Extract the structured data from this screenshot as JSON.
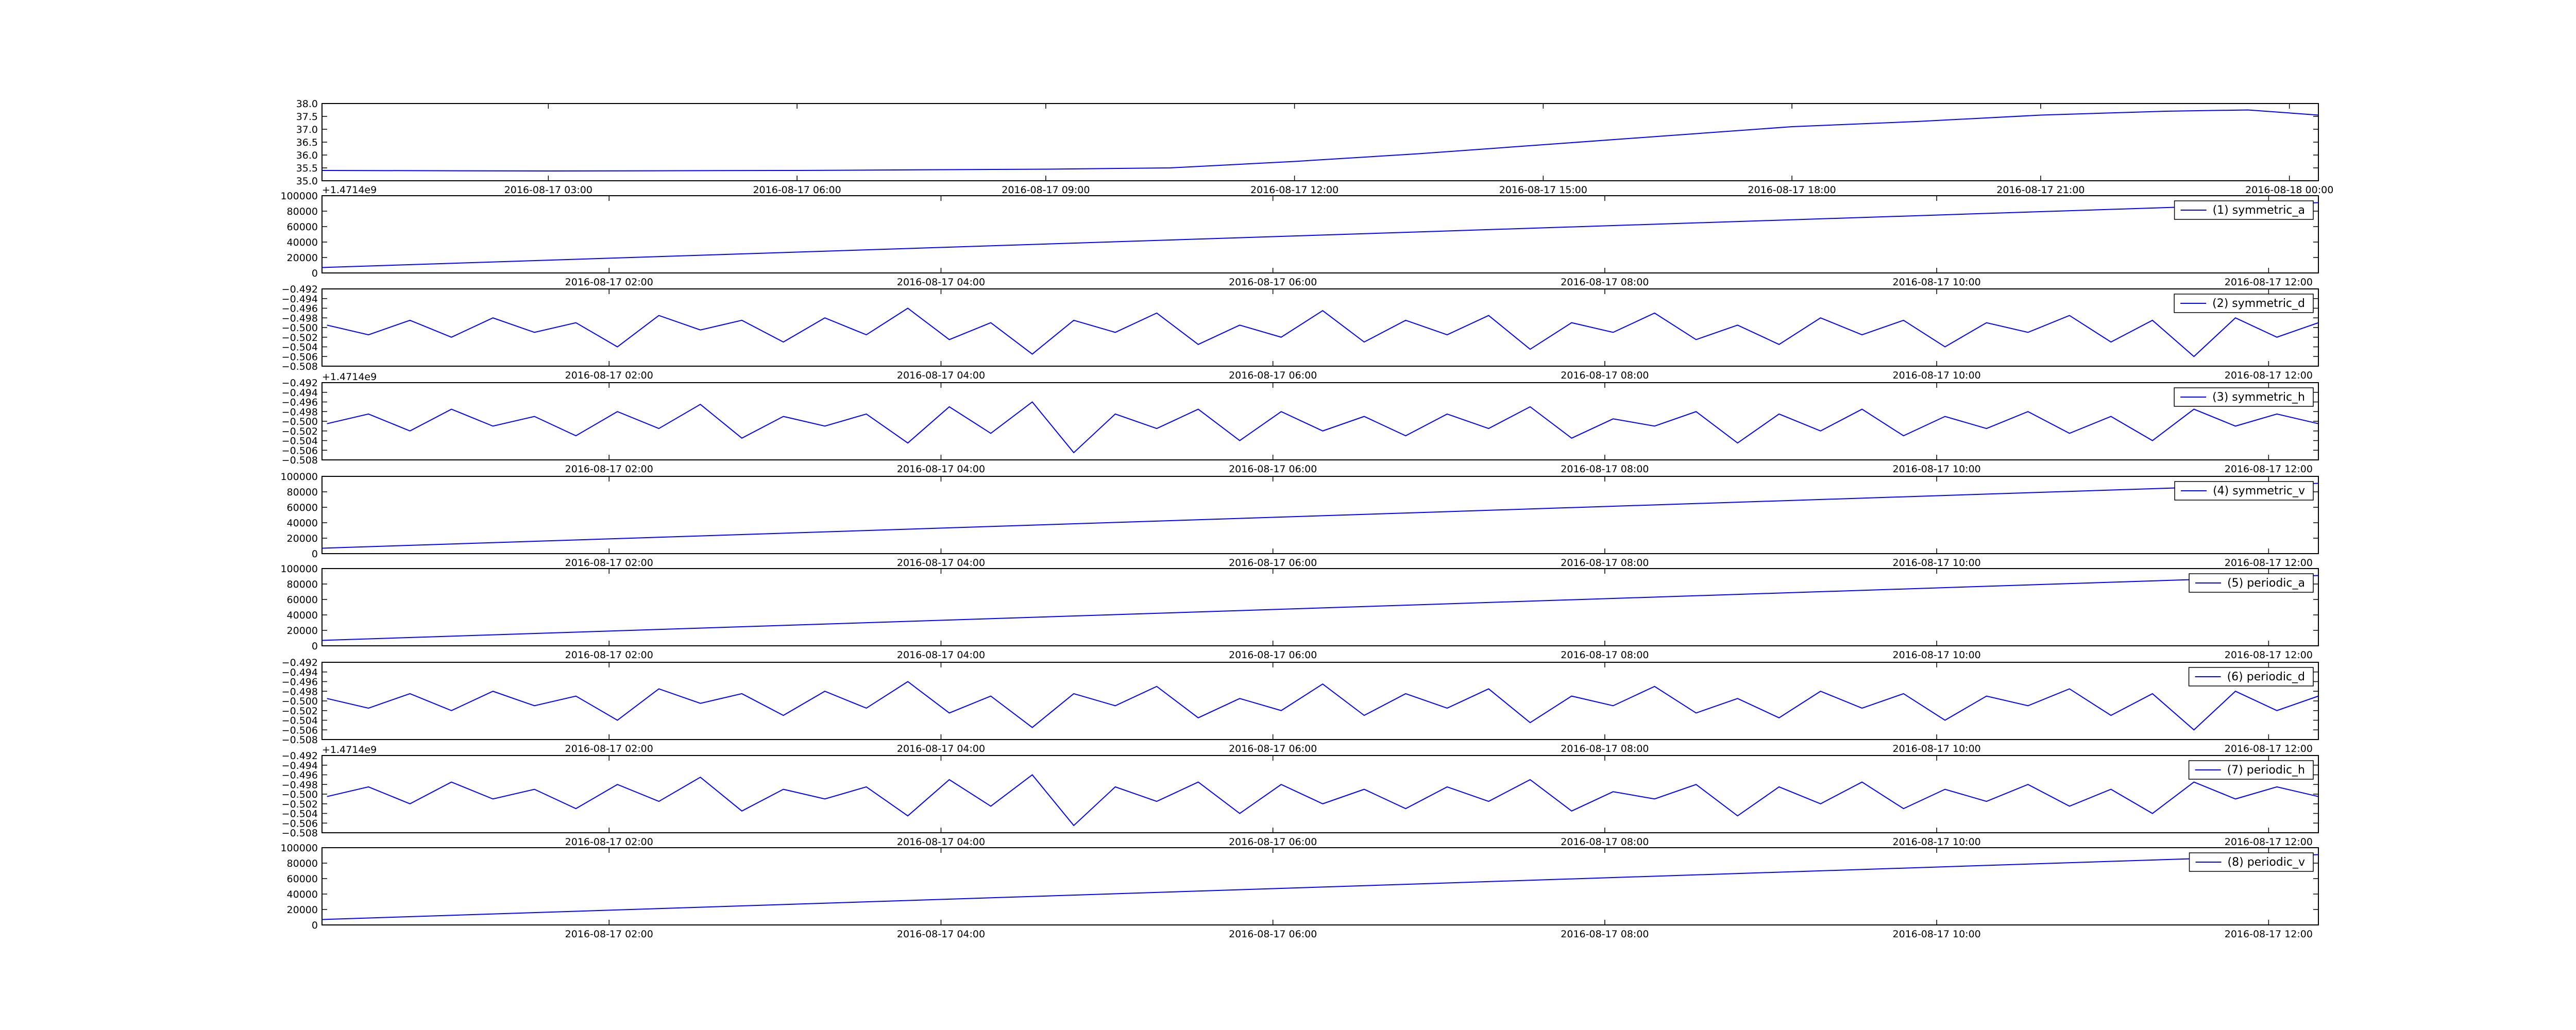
{
  "chart_data": [
    {
      "type": "line",
      "x": [
        0.27,
        3,
        6,
        9,
        10.5,
        12,
        13.5,
        15,
        16.5,
        18,
        19.5,
        21,
        22.5,
        23.5,
        24.35
      ],
      "series": [
        {
          "color": "#0000ff",
          "values": [
            35.4,
            35.38,
            35.4,
            35.45,
            35.5,
            35.75,
            36.05,
            36.4,
            36.75,
            37.1,
            37.3,
            37.55,
            37.7,
            37.75,
            37.55
          ]
        }
      ],
      "xlim": [
        0.27,
        24.35
      ],
      "ylim": [
        35,
        38
      ],
      "xticks": [
        {
          "value": 3,
          "label": "2016-08-17 03:00"
        },
        {
          "value": 6,
          "label": "2016-08-17 06:00"
        },
        {
          "value": 9,
          "label": "2016-08-17 09:00"
        },
        {
          "value": 12,
          "label": "2016-08-17 12:00"
        },
        {
          "value": 15,
          "label": "2016-08-17 15:00"
        },
        {
          "value": 18,
          "label": "2016-08-17 18:00"
        },
        {
          "value": 21,
          "label": "2016-08-17 21:00"
        },
        {
          "value": 24,
          "label": "2016-08-18 00:00"
        }
      ],
      "yticks": [
        {
          "value": 35,
          "label": "35.0"
        },
        {
          "value": 35.5,
          "label": "35.5"
        },
        {
          "value": 36,
          "label": "36.0"
        },
        {
          "value": 36.5,
          "label": "36.5"
        },
        {
          "value": 37,
          "label": "37.0"
        },
        {
          "value": 37.5,
          "label": "37.5"
        },
        {
          "value": 38,
          "label": "38.0"
        }
      ]
    },
    {
      "type": "line",
      "x": [
        0.27,
        12.3
      ],
      "series": [
        {
          "name": "(1) symmetric_a",
          "color": "#0000ff",
          "values": [
            7000,
            91000
          ]
        }
      ],
      "xlim": [
        0.27,
        12.3
      ],
      "ylim": [
        0,
        100000
      ],
      "offset_text": "+1.4714e9",
      "legend": "upper right",
      "xticks": [
        {
          "value": 2,
          "label": "2016-08-17 02:00"
        },
        {
          "value": 4,
          "label": "2016-08-17 04:00"
        },
        {
          "value": 6,
          "label": "2016-08-17 06:00"
        },
        {
          "value": 8,
          "label": "2016-08-17 08:00"
        },
        {
          "value": 10,
          "label": "2016-08-17 10:00"
        },
        {
          "value": 12,
          "label": "2016-08-17 12:00"
        }
      ],
      "yticks": [
        0,
        20000,
        40000,
        60000,
        80000,
        100000
      ]
    },
    {
      "type": "line",
      "x": [
        0.3,
        0.55,
        0.8,
        1.05,
        1.3,
        1.55,
        1.8,
        2.05,
        2.3,
        2.55,
        2.8,
        3.05,
        3.3,
        3.55,
        3.8,
        4.05,
        4.3,
        4.55,
        4.8,
        5.05,
        5.3,
        5.55,
        5.8,
        6.05,
        6.3,
        6.55,
        6.8,
        7.05,
        7.3,
        7.55,
        7.8,
        8.05,
        8.3,
        8.55,
        8.8,
        9.05,
        9.3,
        9.55,
        9.8,
        10.05,
        10.3,
        10.55,
        10.8,
        11.05,
        11.3,
        11.55,
        11.8,
        12.05,
        12.3
      ],
      "series": [
        {
          "name": "(2) symmetric_d",
          "color": "#0000ff",
          "values": [
            -0.4995,
            -0.5015,
            -0.4985,
            -0.502,
            -0.498,
            -0.501,
            -0.499,
            -0.504,
            -0.4975,
            -0.5005,
            -0.4985,
            -0.503,
            -0.498,
            -0.5015,
            -0.496,
            -0.5025,
            -0.499,
            -0.5055,
            -0.4985,
            -0.501,
            -0.497,
            -0.5035,
            -0.4995,
            -0.502,
            -0.4965,
            -0.503,
            -0.4985,
            -0.5015,
            -0.4975,
            -0.5045,
            -0.499,
            -0.501,
            -0.497,
            -0.5025,
            -0.4995,
            -0.5035,
            -0.498,
            -0.5015,
            -0.4985,
            -0.504,
            -0.499,
            -0.501,
            -0.4975,
            -0.503,
            -0.4985,
            -0.506,
            -0.498,
            -0.502,
            -0.499
          ]
        }
      ],
      "xlim": [
        0.27,
        12.3
      ],
      "ylim": [
        -0.508,
        -0.492
      ],
      "legend": "upper right",
      "xticks": [
        {
          "value": 2,
          "label": "2016-08-17 02:00"
        },
        {
          "value": 4,
          "label": "2016-08-17 04:00"
        },
        {
          "value": 6,
          "label": "2016-08-17 06:00"
        },
        {
          "value": 8,
          "label": "2016-08-17 08:00"
        },
        {
          "value": 10,
          "label": "2016-08-17 10:00"
        },
        {
          "value": 12,
          "label": "2016-08-17 12:00"
        }
      ],
      "yticks": [
        {
          "value": -0.508,
          "label": "−0.508"
        },
        {
          "value": -0.506,
          "label": "−0.506"
        },
        {
          "value": -0.504,
          "label": "−0.504"
        },
        {
          "value": -0.502,
          "label": "−0.502"
        },
        {
          "value": -0.5,
          "label": "−0.500"
        },
        {
          "value": -0.498,
          "label": "−0.498"
        },
        {
          "value": -0.496,
          "label": "−0.496"
        },
        {
          "value": -0.494,
          "label": "−0.494"
        },
        {
          "value": -0.492,
          "label": "−0.492"
        }
      ]
    },
    {
      "type": "line",
      "x": [
        0.3,
        0.55,
        0.8,
        1.05,
        1.3,
        1.55,
        1.8,
        2.05,
        2.3,
        2.55,
        2.8,
        3.05,
        3.3,
        3.55,
        3.8,
        4.05,
        4.3,
        4.55,
        4.8,
        5.05,
        5.3,
        5.55,
        5.8,
        6.05,
        6.3,
        6.55,
        6.8,
        7.05,
        7.3,
        7.55,
        7.8,
        8.05,
        8.3,
        8.55,
        8.8,
        9.05,
        9.3,
        9.55,
        9.8,
        10.05,
        10.3,
        10.55,
        10.8,
        11.05,
        11.3,
        11.55,
        11.8,
        12.05,
        12.3
      ],
      "series": [
        {
          "name": "(3) symmetric_h",
          "color": "#0000ff",
          "values": [
            -0.5005,
            -0.4985,
            -0.502,
            -0.4975,
            -0.501,
            -0.499,
            -0.503,
            -0.498,
            -0.5015,
            -0.4965,
            -0.5035,
            -0.499,
            -0.501,
            -0.4985,
            -0.5045,
            -0.497,
            -0.5025,
            -0.496,
            -0.5065,
            -0.4985,
            -0.5015,
            -0.4975,
            -0.504,
            -0.498,
            -0.502,
            -0.499,
            -0.503,
            -0.4985,
            -0.5015,
            -0.497,
            -0.5035,
            -0.4995,
            -0.501,
            -0.498,
            -0.5045,
            -0.4985,
            -0.502,
            -0.4975,
            -0.503,
            -0.499,
            -0.5015,
            -0.498,
            -0.5025,
            -0.499,
            -0.504,
            -0.4975,
            -0.501,
            -0.4985,
            -0.5005
          ]
        }
      ],
      "xlim": [
        0.27,
        12.3
      ],
      "ylim": [
        -0.508,
        -0.492
      ],
      "offset_text": "+1.4714e9",
      "legend": "upper right",
      "xticks": [
        {
          "value": 2,
          "label": "2016-08-17 02:00"
        },
        {
          "value": 4,
          "label": "2016-08-17 04:00"
        },
        {
          "value": 6,
          "label": "2016-08-17 06:00"
        },
        {
          "value": 8,
          "label": "2016-08-17 08:00"
        },
        {
          "value": 10,
          "label": "2016-08-17 10:00"
        },
        {
          "value": 12,
          "label": "2016-08-17 12:00"
        }
      ],
      "yticks": [
        {
          "value": -0.508,
          "label": "−0.508"
        },
        {
          "value": -0.506,
          "label": "−0.506"
        },
        {
          "value": -0.504,
          "label": "−0.504"
        },
        {
          "value": -0.502,
          "label": "−0.502"
        },
        {
          "value": -0.5,
          "label": "−0.500"
        },
        {
          "value": -0.498,
          "label": "−0.498"
        },
        {
          "value": -0.496,
          "label": "−0.496"
        },
        {
          "value": -0.494,
          "label": "−0.494"
        },
        {
          "value": -0.492,
          "label": "−0.492"
        }
      ]
    },
    {
      "type": "line",
      "x": [
        0.27,
        12.3
      ],
      "series": [
        {
          "name": "(4) symmetric_v",
          "color": "#0000ff",
          "values": [
            7000,
            91000
          ]
        }
      ],
      "xlim": [
        0.27,
        12.3
      ],
      "ylim": [
        0,
        100000
      ],
      "legend": "upper right",
      "xticks": [
        {
          "value": 2,
          "label": "2016-08-17 02:00"
        },
        {
          "value": 4,
          "label": "2016-08-17 04:00"
        },
        {
          "value": 6,
          "label": "2016-08-17 06:00"
        },
        {
          "value": 8,
          "label": "2016-08-17 08:00"
        },
        {
          "value": 10,
          "label": "2016-08-17 10:00"
        },
        {
          "value": 12,
          "label": "2016-08-17 12:00"
        }
      ],
      "yticks": [
        0,
        20000,
        40000,
        60000,
        80000,
        100000
      ]
    },
    {
      "type": "line",
      "x": [
        0.27,
        12.3
      ],
      "series": [
        {
          "name": "(5) periodic_a",
          "color": "#0000ff",
          "values": [
            7000,
            91000
          ]
        }
      ],
      "xlim": [
        0.27,
        12.3
      ],
      "ylim": [
        0,
        100000
      ],
      "legend": "upper right",
      "xticks": [
        {
          "value": 2,
          "label": "2016-08-17 02:00"
        },
        {
          "value": 4,
          "label": "2016-08-17 04:00"
        },
        {
          "value": 6,
          "label": "2016-08-17 06:00"
        },
        {
          "value": 8,
          "label": "2016-08-17 08:00"
        },
        {
          "value": 10,
          "label": "2016-08-17 10:00"
        },
        {
          "value": 12,
          "label": "2016-08-17 12:00"
        }
      ],
      "yticks": [
        0,
        20000,
        40000,
        60000,
        80000,
        100000
      ]
    },
    {
      "type": "line",
      "x": [
        0.3,
        0.55,
        0.8,
        1.05,
        1.3,
        1.55,
        1.8,
        2.05,
        2.3,
        2.55,
        2.8,
        3.05,
        3.3,
        3.55,
        3.8,
        4.05,
        4.3,
        4.55,
        4.8,
        5.05,
        5.3,
        5.55,
        5.8,
        6.05,
        6.3,
        6.55,
        6.8,
        7.05,
        7.3,
        7.55,
        7.8,
        8.05,
        8.3,
        8.55,
        8.8,
        9.05,
        9.3,
        9.55,
        9.8,
        10.05,
        10.3,
        10.55,
        10.8,
        11.05,
        11.3,
        11.55,
        11.8,
        12.05,
        12.3
      ],
      "series": [
        {
          "name": "(6) periodic_d",
          "color": "#0000ff",
          "values": [
            -0.4995,
            -0.5015,
            -0.4985,
            -0.502,
            -0.498,
            -0.501,
            -0.499,
            -0.504,
            -0.4975,
            -0.5005,
            -0.4985,
            -0.503,
            -0.498,
            -0.5015,
            -0.496,
            -0.5025,
            -0.499,
            -0.5055,
            -0.4985,
            -0.501,
            -0.497,
            -0.5035,
            -0.4995,
            -0.502,
            -0.4965,
            -0.503,
            -0.4985,
            -0.5015,
            -0.4975,
            -0.5045,
            -0.499,
            -0.501,
            -0.497,
            -0.5025,
            -0.4995,
            -0.5035,
            -0.498,
            -0.5015,
            -0.4985,
            -0.504,
            -0.499,
            -0.501,
            -0.4975,
            -0.503,
            -0.4985,
            -0.506,
            -0.498,
            -0.502,
            -0.499
          ]
        }
      ],
      "xlim": [
        0.27,
        12.3
      ],
      "ylim": [
        -0.508,
        -0.492
      ],
      "legend": "upper right",
      "xticks": [
        {
          "value": 2,
          "label": "2016-08-17 02:00"
        },
        {
          "value": 4,
          "label": "2016-08-17 04:00"
        },
        {
          "value": 6,
          "label": "2016-08-17 06:00"
        },
        {
          "value": 8,
          "label": "2016-08-17 08:00"
        },
        {
          "value": 10,
          "label": "2016-08-17 10:00"
        },
        {
          "value": 12,
          "label": "2016-08-17 12:00"
        }
      ],
      "yticks": [
        {
          "value": -0.508,
          "label": "−0.508"
        },
        {
          "value": -0.506,
          "label": "−0.506"
        },
        {
          "value": -0.504,
          "label": "−0.504"
        },
        {
          "value": -0.502,
          "label": "−0.502"
        },
        {
          "value": -0.5,
          "label": "−0.500"
        },
        {
          "value": -0.498,
          "label": "−0.498"
        },
        {
          "value": -0.496,
          "label": "−0.496"
        },
        {
          "value": -0.494,
          "label": "−0.494"
        },
        {
          "value": -0.492,
          "label": "−0.492"
        }
      ]
    },
    {
      "type": "line",
      "x": [
        0.3,
        0.55,
        0.8,
        1.05,
        1.3,
        1.55,
        1.8,
        2.05,
        2.3,
        2.55,
        2.8,
        3.05,
        3.3,
        3.55,
        3.8,
        4.05,
        4.3,
        4.55,
        4.8,
        5.05,
        5.3,
        5.55,
        5.8,
        6.05,
        6.3,
        6.55,
        6.8,
        7.05,
        7.3,
        7.55,
        7.8,
        8.05,
        8.3,
        8.55,
        8.8,
        9.05,
        9.3,
        9.55,
        9.8,
        10.05,
        10.3,
        10.55,
        10.8,
        11.05,
        11.3,
        11.55,
        11.8,
        12.05,
        12.3
      ],
      "series": [
        {
          "name": "(7) periodic_h",
          "color": "#0000ff",
          "values": [
            -0.5005,
            -0.4985,
            -0.502,
            -0.4975,
            -0.501,
            -0.499,
            -0.503,
            -0.498,
            -0.5015,
            -0.4965,
            -0.5035,
            -0.499,
            -0.501,
            -0.4985,
            -0.5045,
            -0.497,
            -0.5025,
            -0.496,
            -0.5065,
            -0.4985,
            -0.5015,
            -0.4975,
            -0.504,
            -0.498,
            -0.502,
            -0.499,
            -0.503,
            -0.4985,
            -0.5015,
            -0.497,
            -0.5035,
            -0.4995,
            -0.501,
            -0.498,
            -0.5045,
            -0.4985,
            -0.502,
            -0.4975,
            -0.503,
            -0.499,
            -0.5015,
            -0.498,
            -0.5025,
            -0.499,
            -0.504,
            -0.4975,
            -0.501,
            -0.4985,
            -0.5005
          ]
        }
      ],
      "xlim": [
        0.27,
        12.3
      ],
      "ylim": [
        -0.508,
        -0.492
      ],
      "offset_text": "+1.4714e9",
      "legend": "upper right",
      "xticks": [
        {
          "value": 2,
          "label": "2016-08-17 02:00"
        },
        {
          "value": 4,
          "label": "2016-08-17 04:00"
        },
        {
          "value": 6,
          "label": "2016-08-17 06:00"
        },
        {
          "value": 8,
          "label": "2016-08-17 08:00"
        },
        {
          "value": 10,
          "label": "2016-08-17 10:00"
        },
        {
          "value": 12,
          "label": "2016-08-17 12:00"
        }
      ],
      "yticks": [
        {
          "value": -0.508,
          "label": "−0.508"
        },
        {
          "value": -0.506,
          "label": "−0.506"
        },
        {
          "value": -0.504,
          "label": "−0.504"
        },
        {
          "value": -0.502,
          "label": "−0.502"
        },
        {
          "value": -0.5,
          "label": "−0.500"
        },
        {
          "value": -0.498,
          "label": "−0.498"
        },
        {
          "value": -0.496,
          "label": "−0.496"
        },
        {
          "value": -0.494,
          "label": "−0.494"
        },
        {
          "value": -0.492,
          "label": "−0.492"
        }
      ]
    },
    {
      "type": "line",
      "x": [
        0.27,
        12.3
      ],
      "series": [
        {
          "name": "(8) periodic_v",
          "color": "#0000ff",
          "values": [
            7000,
            91000
          ]
        }
      ],
      "xlim": [
        0.27,
        12.3
      ],
      "ylim": [
        0,
        100000
      ],
      "legend": "upper right",
      "xticks": [
        {
          "value": 2,
          "label": "2016-08-17 02:00"
        },
        {
          "value": 4,
          "label": "2016-08-17 04:00"
        },
        {
          "value": 6,
          "label": "2016-08-17 06:00"
        },
        {
          "value": 8,
          "label": "2016-08-17 08:00"
        },
        {
          "value": 10,
          "label": "2016-08-17 10:00"
        },
        {
          "value": 12,
          "label": "2016-08-17 12:00"
        }
      ],
      "yticks": [
        0,
        20000,
        40000,
        60000,
        80000,
        100000
      ]
    }
  ]
}
